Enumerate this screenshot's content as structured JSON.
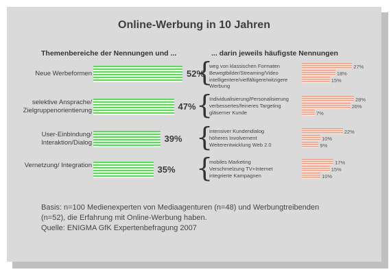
{
  "chart_data": {
    "type": "bar",
    "title": "Online-Werbung in 10 Jahren",
    "left_header": "Themenbereiche der Nennungen und ...",
    "right_header": "... darin jeweils häufigste Nennungen",
    "groups": [
      {
        "category": "Neue Werbeformen",
        "value": 52,
        "value_label": "52%",
        "items": [
          {
            "label": "weg von klassischen Formaten",
            "value": 27,
            "value_label": "27%"
          },
          {
            "label": "Bewegtbilder/Streaming/Video",
            "value": 18,
            "value_label": "18%"
          },
          {
            "label": "intelligentere/vielfältigere/witzigere Werbung",
            "value": 15,
            "value_label": "15%"
          }
        ]
      },
      {
        "category": "selektive Ansprache/ Zielgruppenorientierung",
        "value": 47,
        "value_label": "47%",
        "items": [
          {
            "label": "Individualisierung/Personalisierung",
            "value": 28,
            "value_label": "28%"
          },
          {
            "label": "verbessertes/feineres Targeting",
            "value": 26,
            "value_label": "26%"
          },
          {
            "label": "gläserner Kunde",
            "value": 7,
            "value_label": "7%"
          }
        ]
      },
      {
        "category": "User-Einbindung/ Interaktion/Dialog",
        "value": 39,
        "value_label": "39%",
        "items": [
          {
            "label": "intensiver Kundendialog",
            "value": 22,
            "value_label": "22%"
          },
          {
            "label": "höheres Involvement",
            "value": 10,
            "value_label": "10%"
          },
          {
            "label": "Weiterentwicklung Web 2.0",
            "value": 9,
            "value_label": "9%"
          }
        ]
      },
      {
        "category": "Vernetzung/ Integration",
        "value": 35,
        "value_label": "35%",
        "items": [
          {
            "label": "mobiles Marketing",
            "value": 17,
            "value_label": "17%"
          },
          {
            "label": "Verschmelzung TV+Internet",
            "value": 15,
            "value_label": "15%"
          },
          {
            "label": "integrierte Kampagnen",
            "value": 10,
            "value_label": "10%"
          }
        ]
      }
    ]
  },
  "footer": {
    "basis_line1": "Basis: n=100 Medienexperten von Mediaagenturen (n=48) und Werbungtreibenden",
    "basis_line2": "(n=52), die Erfahrung mit Online-Werbung haben.",
    "source": "Quelle: ENIGMA GfK Expertenbefragung 2007"
  },
  "colors": {
    "main_bar": "#5fd860",
    "sub_bar": "#ef9e86",
    "background": "#dadada"
  }
}
